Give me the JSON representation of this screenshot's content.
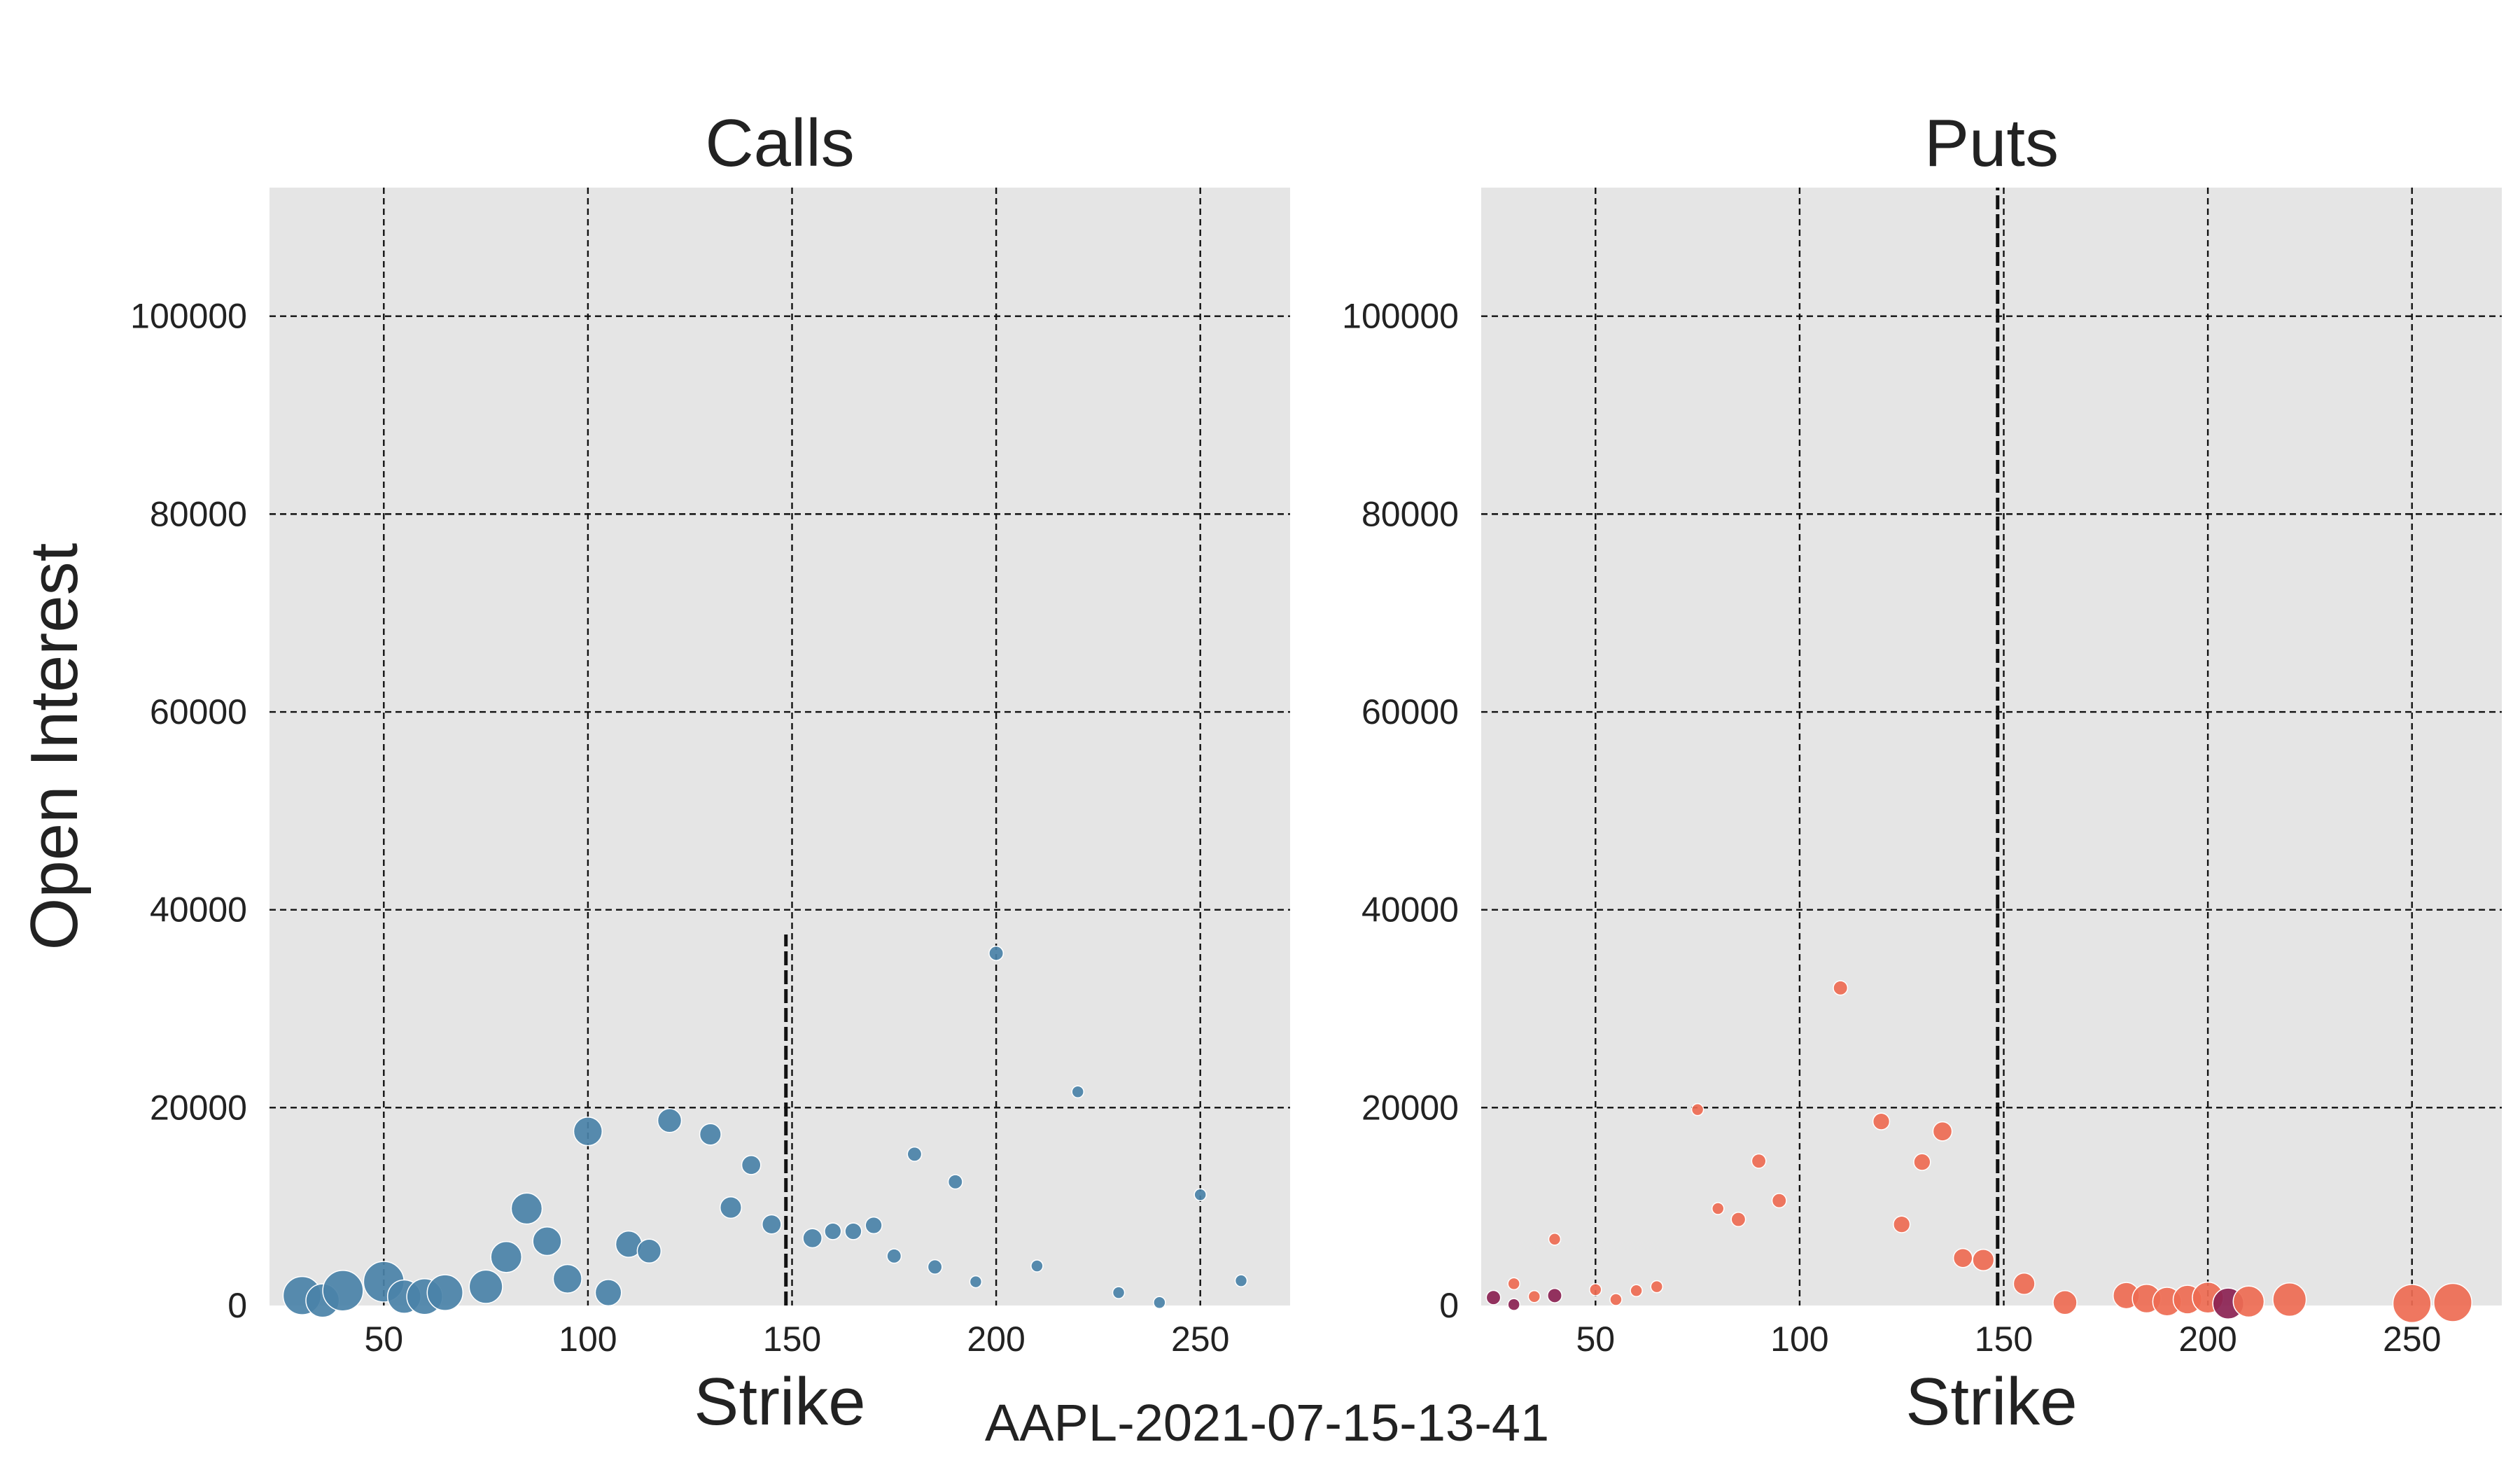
{
  "figure_title": "AAPL-2021-07-15-13-41",
  "colors": {
    "panel_background": "#e5e5e5",
    "calls": "#4a82a8",
    "puts": "#ee6b52",
    "puts_dark": "#8b2252",
    "grid": "#111111"
  },
  "chart_data": [
    {
      "type": "scatter",
      "title": "Calls",
      "xlabel": "Strike",
      "ylabel": "Open Interest",
      "xlim": [
        22,
        272
      ],
      "ylim": [
        0,
        113000
      ],
      "xticks": [
        50,
        100,
        150,
        200,
        250
      ],
      "yticks": [
        0,
        20000,
        40000,
        60000,
        80000,
        100000
      ],
      "grid": true,
      "underlying_price_line": {
        "x": 148.5,
        "y_top": 37500
      },
      "points": [
        {
          "x": 30,
          "y": 1000,
          "size": 16
        },
        {
          "x": 35,
          "y": 500,
          "size": 14
        },
        {
          "x": 40,
          "y": 1500,
          "size": 17
        },
        {
          "x": 50,
          "y": 2400,
          "size": 17
        },
        {
          "x": 55,
          "y": 900,
          "size": 14
        },
        {
          "x": 60,
          "y": 900,
          "size": 15
        },
        {
          "x": 65,
          "y": 1300,
          "size": 15
        },
        {
          "x": 75,
          "y": 1900,
          "size": 14
        },
        {
          "x": 80,
          "y": 4900,
          "size": 13
        },
        {
          "x": 85,
          "y": 9800,
          "size": 13
        },
        {
          "x": 90,
          "y": 6500,
          "size": 12
        },
        {
          "x": 95,
          "y": 2700,
          "size": 12
        },
        {
          "x": 100,
          "y": 17600,
          "size": 12
        },
        {
          "x": 105,
          "y": 1300,
          "size": 11
        },
        {
          "x": 110,
          "y": 6200,
          "size": 11
        },
        {
          "x": 115,
          "y": 5500,
          "size": 10
        },
        {
          "x": 120,
          "y": 18700,
          "size": 10
        },
        {
          "x": 130,
          "y": 17300,
          "size": 9
        },
        {
          "x": 135,
          "y": 9900,
          "size": 9
        },
        {
          "x": 140,
          "y": 14200,
          "size": 8
        },
        {
          "x": 145,
          "y": 8200,
          "size": 8
        },
        {
          "x": 155,
          "y": 6800,
          "size": 8
        },
        {
          "x": 160,
          "y": 7500,
          "size": 7
        },
        {
          "x": 165,
          "y": 7500,
          "size": 7
        },
        {
          "x": 170,
          "y": 8100,
          "size": 7
        },
        {
          "x": 175,
          "y": 5000,
          "size": 6
        },
        {
          "x": 180,
          "y": 15300,
          "size": 6
        },
        {
          "x": 185,
          "y": 3900,
          "size": 6
        },
        {
          "x": 190,
          "y": 12500,
          "size": 6
        },
        {
          "x": 195,
          "y": 2400,
          "size": 5
        },
        {
          "x": 200,
          "y": 35600,
          "size": 6
        },
        {
          "x": 210,
          "y": 4000,
          "size": 5
        },
        {
          "x": 220,
          "y": 21600,
          "size": 5
        },
        {
          "x": 230,
          "y": 1300,
          "size": 5
        },
        {
          "x": 240,
          "y": 300,
          "size": 5
        },
        {
          "x": 250,
          "y": 11200,
          "size": 5
        },
        {
          "x": 260,
          "y": 2500,
          "size": 5
        }
      ]
    },
    {
      "type": "scatter",
      "title": "Puts",
      "xlabel": "Strike",
      "ylabel": "",
      "xlim": [
        22,
        272
      ],
      "ylim": [
        0,
        113000
      ],
      "xticks": [
        50,
        100,
        150,
        200,
        250
      ],
      "yticks": [
        0,
        20000,
        40000,
        60000,
        80000,
        100000
      ],
      "grid": true,
      "underlying_price_line": {
        "x": 148.5,
        "y_top": 113000
      },
      "points": [
        {
          "x": 25,
          "y": 800,
          "size": 6,
          "tone": "dark"
        },
        {
          "x": 30,
          "y": 2200,
          "size": 5
        },
        {
          "x": 30,
          "y": 100,
          "size": 5,
          "tone": "dark"
        },
        {
          "x": 35,
          "y": 900,
          "size": 5
        },
        {
          "x": 40,
          "y": 6700,
          "size": 5
        },
        {
          "x": 40,
          "y": 1000,
          "size": 6,
          "tone": "dark"
        },
        {
          "x": 50,
          "y": 1600,
          "size": 5
        },
        {
          "x": 55,
          "y": 600,
          "size": 5
        },
        {
          "x": 60,
          "y": 1500,
          "size": 5
        },
        {
          "x": 65,
          "y": 1900,
          "size": 5
        },
        {
          "x": 75,
          "y": 19800,
          "size": 5
        },
        {
          "x": 80,
          "y": 9800,
          "size": 5
        },
        {
          "x": 85,
          "y": 8700,
          "size": 6
        },
        {
          "x": 90,
          "y": 14600,
          "size": 6
        },
        {
          "x": 95,
          "y": 10600,
          "size": 6
        },
        {
          "x": 110,
          "y": 32100,
          "size": 6
        },
        {
          "x": 120,
          "y": 18600,
          "size": 7
        },
        {
          "x": 125,
          "y": 8200,
          "size": 7
        },
        {
          "x": 130,
          "y": 14500,
          "size": 7
        },
        {
          "x": 135,
          "y": 17600,
          "size": 8
        },
        {
          "x": 140,
          "y": 4800,
          "size": 8
        },
        {
          "x": 145,
          "y": 4600,
          "size": 9
        },
        {
          "x": 155,
          "y": 2200,
          "size": 9
        },
        {
          "x": 165,
          "y": 300,
          "size": 10
        },
        {
          "x": 180,
          "y": 1000,
          "size": 11
        },
        {
          "x": 185,
          "y": 700,
          "size": 12
        },
        {
          "x": 190,
          "y": 400,
          "size": 12
        },
        {
          "x": 195,
          "y": 600,
          "size": 12
        },
        {
          "x": 200,
          "y": 800,
          "size": 13
        },
        {
          "x": 205,
          "y": 200,
          "size": 13,
          "tone": "dark"
        },
        {
          "x": 210,
          "y": 400,
          "size": 13
        },
        {
          "x": 220,
          "y": 600,
          "size": 14
        },
        {
          "x": 250,
          "y": 200,
          "size": 16
        },
        {
          "x": 260,
          "y": 300,
          "size": 16
        }
      ]
    }
  ]
}
